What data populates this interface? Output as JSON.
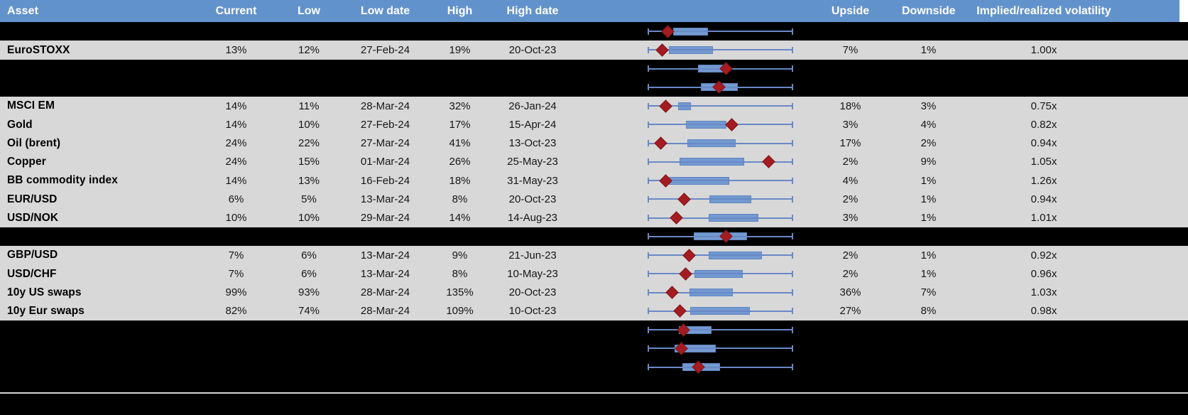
{
  "colors": {
    "header_bg": "#6292CC",
    "row_gray": "#D8D8D8",
    "row_black": "#000000",
    "box_fill": "#7399D0",
    "whisker": "#6889C6",
    "marker": "#A41C21",
    "header_text": "#FFFFFF"
  },
  "header": {
    "columns": [
      {
        "key": "label",
        "label": "Asset"
      },
      {
        "key": "current",
        "label": "Current"
      },
      {
        "key": "low",
        "label": "Low"
      },
      {
        "key": "low_date",
        "label": "Low date"
      },
      {
        "key": "high",
        "label": "High"
      },
      {
        "key": "high_date",
        "label": "High date"
      },
      {
        "key": "plot",
        "label": ""
      },
      {
        "key": "upside",
        "label": "Upside"
      },
      {
        "key": "downside",
        "label": "Downside"
      },
      {
        "key": "ratio",
        "label": "Implied/realized volatility"
      },
      {
        "key": "filler",
        "label": ""
      }
    ]
  },
  "rows": [
    {
      "type": "spacer",
      "bg": "black",
      "plot": {
        "box": [
          0.177,
          0.413
        ],
        "marker": 0.14
      }
    },
    {
      "type": "data",
      "bg": "gray",
      "label": "EuroSTOXX",
      "current": "13%",
      "low": "12%",
      "low_date": "27-Feb-24",
      "high": "19%",
      "high_date": "20-Oct-23",
      "upside": "7%",
      "downside": "1%",
      "ratio": "1.00x",
      "plot": {
        "box": [
          0.145,
          0.449
        ],
        "marker": 0.099
      }
    },
    {
      "type": "spacer",
      "bg": "black",
      "plot": {
        "box": [
          0.348,
          0.551
        ],
        "marker": 0.54
      }
    },
    {
      "type": "spacer",
      "bg": "black",
      "plot": {
        "box": [
          0.364,
          0.621
        ],
        "marker": 0.489
      }
    },
    {
      "type": "data",
      "bg": "gray",
      "label": "MSCI EM",
      "current": "14%",
      "low": "11%",
      "low_date": "28-Mar-24",
      "high": "32%",
      "high_date": "26-Jan-24",
      "upside": "18%",
      "downside": "3%",
      "ratio": "0.75x",
      "plot": {
        "box": [
          0.208,
          0.296
        ],
        "marker": 0.125
      }
    },
    {
      "type": "data",
      "bg": "gray",
      "label": "Gold",
      "current": "14%",
      "low": "10%",
      "low_date": "27-Feb-24",
      "high": "17%",
      "high_date": "15-Apr-24",
      "upside": "3%",
      "downside": "4%",
      "ratio": "0.82x",
      "plot": {
        "box": [
          0.263,
          0.543
        ],
        "marker": 0.579
      }
    },
    {
      "type": "data",
      "bg": "gray",
      "label": "Oil (brent)",
      "current": "24%",
      "low": "22%",
      "low_date": "27-Mar-24",
      "high": "41%",
      "high_date": "13-Oct-23",
      "upside": "17%",
      "downside": "2%",
      "ratio": "0.94x",
      "plot": {
        "box": [
          0.272,
          0.605
        ],
        "marker": 0.088
      }
    },
    {
      "type": "data",
      "bg": "gray",
      "label": "Copper",
      "current": "24%",
      "low": "15%",
      "low_date": "01-Mar-24",
      "high": "26%",
      "high_date": "25-May-23",
      "upside": "2%",
      "downside": "9%",
      "ratio": "1.05x",
      "plot": {
        "box": [
          0.221,
          0.665
        ],
        "marker": 0.831
      }
    },
    {
      "type": "data",
      "bg": "gray",
      "label": "BB commodity index",
      "current": "14%",
      "low": "13%",
      "low_date": "16-Feb-24",
      "high": "18%",
      "high_date": "31-May-23",
      "upside": "4%",
      "downside": "1%",
      "ratio": "1.26x",
      "plot": {
        "box": [
          0.145,
          0.563
        ],
        "marker": 0.123
      }
    },
    {
      "type": "data",
      "bg": "gray",
      "label": "EUR/USD",
      "current": "6%",
      "low": "5%",
      "low_date": "13-Mar-24",
      "high": "8%",
      "high_date": "20-Oct-23",
      "upside": "2%",
      "downside": "1%",
      "ratio": "0.94x",
      "plot": {
        "box": [
          0.423,
          0.714
        ],
        "marker": 0.25
      }
    },
    {
      "type": "data",
      "bg": "gray",
      "label": "USD/NOK",
      "current": "10%",
      "low": "10%",
      "low_date": "29-Mar-24",
      "high": "14%",
      "high_date": "14-Aug-23",
      "upside": "3%",
      "downside": "1%",
      "ratio": "1.01x",
      "plot": {
        "box": [
          0.418,
          0.763
        ],
        "marker": 0.199
      }
    },
    {
      "type": "spacer",
      "bg": "black",
      "plot": {
        "box": [
          0.316,
          0.685
        ],
        "marker": 0.538
      }
    },
    {
      "type": "data",
      "bg": "gray",
      "label": "GBP/USD",
      "current": "7%",
      "low": "6%",
      "low_date": "13-Mar-24",
      "high": "9%",
      "high_date": "21-Jun-23",
      "upside": "2%",
      "downside": "1%",
      "ratio": "0.92x",
      "plot": {
        "box": [
          0.42,
          0.787
        ],
        "marker": 0.283
      }
    },
    {
      "type": "data",
      "bg": "gray",
      "label": "USD/CHF",
      "current": "7%",
      "low": "6%",
      "low_date": "13-Mar-24",
      "high": "8%",
      "high_date": "10-May-23",
      "upside": "2%",
      "downside": "1%",
      "ratio": "0.96x",
      "plot": {
        "box": [
          0.323,
          0.654
        ],
        "marker": 0.262
      }
    },
    {
      "type": "data",
      "bg": "gray",
      "label": "10y US swaps",
      "current": "99%",
      "low": "93%",
      "low_date": "28-Mar-24",
      "high": "135%",
      "high_date": "20-Oct-23",
      "upside": "36%",
      "downside": "7%",
      "ratio": "1.03x",
      "plot": {
        "box": [
          0.29,
          0.585
        ],
        "marker": 0.169
      }
    },
    {
      "type": "data",
      "bg": "gray",
      "label": "10y Eur swaps",
      "current": "82%",
      "low": "74%",
      "low_date": "28-Mar-24",
      "high": "109%",
      "high_date": "10-Oct-23",
      "upside": "27%",
      "downside": "8%",
      "ratio": "0.98x",
      "plot": {
        "box": [
          0.291,
          0.702
        ],
        "marker": 0.221
      }
    },
    {
      "type": "spacer",
      "bg": "black",
      "plot": {
        "box": [
          0.216,
          0.44
        ],
        "marker": 0.248
      }
    },
    {
      "type": "spacer",
      "bg": "black",
      "plot": {
        "box": [
          0.185,
          0.47
        ],
        "marker": 0.23
      }
    },
    {
      "type": "spacer",
      "bg": "black",
      "plot": {
        "box": [
          0.237,
          0.498
        ],
        "marker": 0.351
      }
    },
    {
      "type": "spacer",
      "bg": "black",
      "plot": null
    }
  ]
}
